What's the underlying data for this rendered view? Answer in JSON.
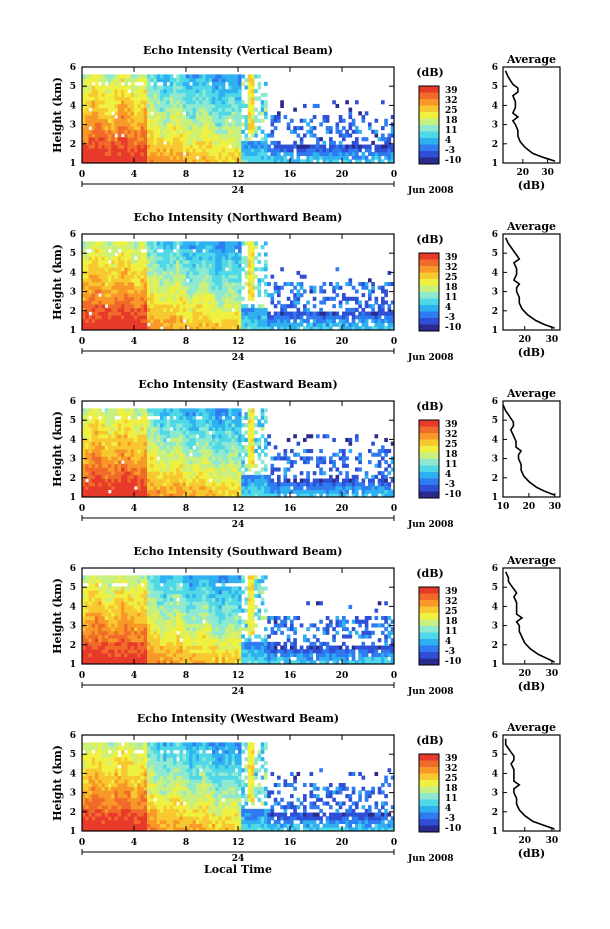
{
  "figure": {
    "date_label": "Jun 2008",
    "xlabel": "Local Time",
    "ylabel": "Height (km)",
    "colorbar_unit": "(dB)",
    "avg_title": "Average",
    "avg_xlabel": "(dB)",
    "colorbar_ticks": [
      "39",
      "32",
      "25",
      "18",
      "11",
      "4",
      "-3",
      "-10"
    ],
    "x_ticks": [
      "0",
      "4",
      "8",
      "12",
      "16",
      "20",
      "0"
    ],
    "date_tick": "24",
    "y_ticks": [
      "1",
      "2",
      "3",
      "4",
      "5",
      "6"
    ],
    "colormap": [
      "#2b2b8c",
      "#2f4fd6",
      "#2f7cf0",
      "#2fb0f0",
      "#4fd8e8",
      "#8fe8d0",
      "#c8f080",
      "#f0f040",
      "#f8c830",
      "#f89828",
      "#f06a2a",
      "#e83a2a"
    ]
  },
  "chart_data": [
    {
      "type": "heatmap",
      "title": "Echo Intensity (Vertical Beam)",
      "xlabel": "Local Time",
      "ylabel": "Height (km)",
      "xlim": [
        0,
        24
      ],
      "ylim": [
        1,
        6
      ],
      "zlim": [
        -10,
        39
      ],
      "z_unit": "dB",
      "avg_profile": {
        "title": "Average",
        "xlabel": "(dB)",
        "x_ticks": [
          "20",
          "30"
        ],
        "xlim": [
          12,
          35
        ],
        "height": [
          1.1,
          1.3,
          1.5,
          1.8,
          2.1,
          2.4,
          2.7,
          3.0,
          3.2,
          3.4,
          3.6,
          3.9,
          4.2,
          4.5,
          4.7,
          4.9,
          5.1,
          5.3,
          5.5,
          5.8
        ],
        "db": [
          33,
          28,
          24,
          21,
          19,
          18,
          18,
          17,
          16,
          18,
          16,
          17,
          17,
          16,
          18,
          18,
          16,
          15,
          14,
          13
        ]
      }
    },
    {
      "type": "heatmap",
      "title": "Echo Intensity (Northward Beam)",
      "xlabel": "Local Time",
      "ylabel": "Height (km)",
      "xlim": [
        0,
        24
      ],
      "ylim": [
        1,
        6
      ],
      "zlim": [
        -10,
        39
      ],
      "z_unit": "dB",
      "avg_profile": {
        "title": "Average",
        "xlabel": "(dB)",
        "x_ticks": [
          "20",
          "30"
        ],
        "xlim": [
          12,
          33
        ],
        "height": [
          1.1,
          1.3,
          1.5,
          1.8,
          2.1,
          2.4,
          2.7,
          3.0,
          3.2,
          3.4,
          3.6,
          3.9,
          4.2,
          4.5,
          4.7,
          4.9,
          5.1,
          5.3,
          5.5,
          5.8
        ],
        "db": [
          31,
          27,
          24,
          21,
          19,
          18,
          18,
          17,
          17,
          18,
          16,
          17,
          17,
          16,
          18,
          17,
          16,
          15,
          14,
          13
        ]
      }
    },
    {
      "type": "heatmap",
      "title": "Echo Intensity (Eastward Beam)",
      "xlabel": "Local Time",
      "ylabel": "Height (km)",
      "xlim": [
        0,
        24
      ],
      "ylim": [
        1,
        6
      ],
      "zlim": [
        -10,
        39
      ],
      "z_unit": "dB",
      "avg_profile": {
        "title": "Average",
        "xlabel": "",
        "x_ticks": [
          "10",
          "20",
          "30"
        ],
        "xlim": [
          10,
          32
        ],
        "height": [
          1.1,
          1.3,
          1.5,
          1.8,
          2.1,
          2.4,
          2.7,
          3.0,
          3.2,
          3.4,
          3.6,
          3.9,
          4.2,
          4.5,
          4.7,
          4.9,
          5.1,
          5.3,
          5.5,
          5.8
        ],
        "db": [
          30,
          26,
          23,
          20,
          18,
          17,
          17,
          16,
          16,
          17,
          15,
          15,
          14,
          13,
          14,
          14,
          13,
          12,
          11,
          10
        ]
      }
    },
    {
      "type": "heatmap",
      "title": "Echo Intensity (Southward Beam)",
      "xlabel": "Local Time",
      "ylabel": "Height (km)",
      "xlim": [
        0,
        24
      ],
      "ylim": [
        1,
        6
      ],
      "zlim": [
        -10,
        39
      ],
      "z_unit": "dB",
      "avg_profile": {
        "title": "Average",
        "xlabel": "(dB)",
        "x_ticks": [
          "20",
          "30"
        ],
        "xlim": [
          12,
          33
        ],
        "height": [
          1.1,
          1.3,
          1.5,
          1.8,
          2.1,
          2.4,
          2.7,
          3.0,
          3.2,
          3.4,
          3.6,
          3.9,
          4.2,
          4.5,
          4.7,
          4.9,
          5.1,
          5.3,
          5.5,
          5.8
        ],
        "db": [
          31,
          28,
          25,
          22,
          20,
          19,
          18,
          18,
          17,
          19,
          17,
          17,
          17,
          16,
          17,
          16,
          15,
          14,
          14,
          13
        ]
      }
    },
    {
      "type": "heatmap",
      "title": "Echo Intensity (Westward Beam)",
      "xlabel": "Local Time",
      "ylabel": "Height (km)",
      "xlim": [
        0,
        24
      ],
      "ylim": [
        1,
        6
      ],
      "zlim": [
        -10,
        39
      ],
      "z_unit": "dB",
      "avg_profile": {
        "title": "Average",
        "xlabel": "(dB)",
        "x_ticks": [
          "20",
          "30"
        ],
        "xlim": [
          12,
          33
        ],
        "height": [
          1.1,
          1.3,
          1.5,
          1.8,
          2.1,
          2.4,
          2.7,
          3.0,
          3.2,
          3.4,
          3.6,
          3.9,
          4.2,
          4.5,
          4.7,
          4.9,
          5.1,
          5.3,
          5.5,
          5.8
        ],
        "db": [
          31,
          27,
          23,
          20,
          18,
          17,
          17,
          16,
          16,
          18,
          16,
          16,
          16,
          15,
          16,
          16,
          15,
          14,
          13,
          13
        ]
      }
    }
  ]
}
